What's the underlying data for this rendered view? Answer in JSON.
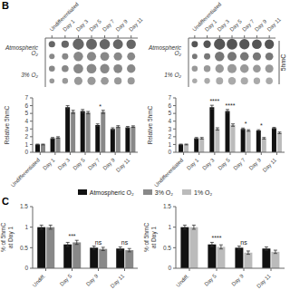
{
  "chart_data": [
    {
      "type": "bubble",
      "annotations": [
        "B"
      ],
      "categories": [
        "Undifferentiated",
        "Day 1",
        "Day 3",
        "Day 5",
        "Day 7",
        "Day 9",
        "Day 11"
      ],
      "series": [
        {
          "name": "Atmospheric O₂",
          "colors": [
            "#666666",
            "#888888"
          ],
          "sizes": [
            [
              105,
              140,
              315,
              294,
              273,
              245,
              224
            ],
            [
              75,
              100,
              225,
              210,
              195,
              175,
              160
            ]
          ]
        },
        {
          "name": "3% O₂",
          "colors": [
            "#888888",
            "#999999"
          ],
          "sizes": [
            [
              91,
              119,
              238,
              238,
              217,
              196,
              182
            ],
            [
              65,
              85,
              170,
              170,
              155,
              140,
              130
            ]
          ]
        }
      ]
    },
    {
      "type": "bubble",
      "annotations": [
        "5hmC"
      ],
      "categories": [
        "Undifferentiated",
        "Day 1",
        "Day 3",
        "Day 5",
        "Day 7",
        "Day 9",
        "Day 11"
      ],
      "series": [
        {
          "name": "Atmospheric O₂",
          "colors": [
            "#555555",
            "#777777"
          ],
          "sizes": [
            [
              105,
              147,
              329,
              301,
              273,
              248.5,
              227.5
            ],
            [
              75,
              105,
              235,
              215,
              195,
              177.5,
              162.5
            ]
          ]
        },
        {
          "name": "1% O₂",
          "colors": [
            "#999999",
            "#aaaaaa"
          ],
          "sizes": [
            [
              91,
              119,
              189,
              217,
              196,
              161,
              175
            ],
            [
              65,
              85,
              135,
              155,
              140,
              115,
              125
            ]
          ]
        }
      ]
    },
    {
      "type": "bar",
      "ylabel": "Relative 5hmC",
      "ylim": [
        0,
        7
      ],
      "yticks": [
        0,
        1,
        2,
        3,
        4,
        5,
        6,
        7
      ],
      "categories": [
        "Undifferentiated",
        "Day 1",
        "Day 3",
        "Day 5",
        "Day 7",
        "Day 9",
        "Day 11"
      ],
      "series": [
        {
          "name": "Atmospheric O₂",
          "color": "#111111",
          "values": [
            1.0,
            1.8,
            5.8,
            5.3,
            3.5,
            3.0,
            3.2
          ],
          "errors": [
            0.05,
            0.1,
            0.2,
            0.2,
            0.15,
            0.15,
            0.12
          ]
        },
        {
          "name": "3% O₂",
          "color": "#888888",
          "values": [
            1.0,
            1.9,
            5.2,
            5.1,
            5.2,
            3.3,
            3.3
          ],
          "errors": [
            0.05,
            0.1,
            0.2,
            0.15,
            0.2,
            0.12,
            0.1
          ]
        }
      ],
      "annotations": [
        {
          "x": "Day 7",
          "text": "*"
        }
      ]
    },
    {
      "type": "bar",
      "ylabel": "Relative 5hmC",
      "ylim": [
        0,
        7
      ],
      "yticks": [
        0,
        1,
        2,
        3,
        4,
        5,
        6,
        7
      ],
      "categories": [
        "Undifferentiated",
        "Day 1",
        "Day 3",
        "Day 5",
        "Day 7",
        "Day 9",
        "Day 11"
      ],
      "series": [
        {
          "name": "Atmospheric O₂",
          "color": "#111111",
          "values": [
            1.0,
            1.8,
            5.8,
            5.3,
            3.0,
            2.8,
            3.1
          ],
          "errors": [
            0.05,
            0.1,
            0.25,
            0.2,
            0.12,
            0.1,
            0.1
          ]
        },
        {
          "name": "1% O₂",
          "color": "#bbbbbb",
          "values": [
            1.0,
            1.8,
            3.0,
            3.5,
            2.8,
            1.8,
            2.5
          ],
          "errors": [
            0.05,
            0.1,
            0.15,
            0.15,
            0.1,
            0.1,
            0.1
          ]
        }
      ],
      "annotations": [
        {
          "x": "Day 3",
          "text": "****"
        },
        {
          "x": "Day 5",
          "text": "****"
        },
        {
          "x": "Day 7",
          "text": "*"
        },
        {
          "x": "Day 9",
          "text": "*"
        }
      ]
    },
    {
      "type": "bar",
      "ylabel": "% of 5hmC\nat Day 1",
      "ylim": [
        0,
        1.5
      ],
      "yticks": [
        0,
        0.5,
        1,
        1.5
      ],
      "categories": [
        "Undiff.",
        "Day 5",
        "Day 9",
        "Day 11"
      ],
      "series": [
        {
          "name": "Atmospheric O₂",
          "color": "#111111",
          "values": [
            1.0,
            0.58,
            0.5,
            0.48
          ],
          "errors": [
            0.05,
            0.05,
            0.04,
            0.04
          ]
        },
        {
          "name": "3% O₂",
          "color": "#888888",
          "values": [
            1.0,
            0.63,
            0.47,
            0.44
          ],
          "errors": [
            0.05,
            0.05,
            0.04,
            0.04
          ]
        }
      ],
      "annotations": [
        "C",
        {
          "x": "Day 5",
          "text": "***"
        },
        {
          "x": "Day 9",
          "text": "ns"
        },
        {
          "x": "Day 11",
          "text": "ns"
        }
      ]
    },
    {
      "type": "bar",
      "ylabel": "% of 5hmC\nat Day 1",
      "ylim": [
        0,
        1.5
      ],
      "yticks": [
        0,
        0.5,
        1,
        1.5
      ],
      "categories": [
        "Undiff.",
        "Day 5",
        "Day 9",
        "Day 11"
      ],
      "series": [
        {
          "name": "Atmospheric O₂",
          "color": "#111111",
          "values": [
            1.0,
            0.58,
            0.5,
            0.48
          ],
          "errors": [
            0.05,
            0.05,
            0.04,
            0.04
          ]
        },
        {
          "name": "1% O₂",
          "color": "#bbbbbb",
          "values": [
            1.0,
            0.52,
            0.38,
            0.4
          ],
          "errors": [
            0.05,
            0.05,
            0.04,
            0.04
          ]
        }
      ],
      "annotations": [
        {
          "x": "Day 5",
          "text": "****"
        },
        {
          "x": "Day 9",
          "text": "ns"
        }
      ]
    }
  ]
}
